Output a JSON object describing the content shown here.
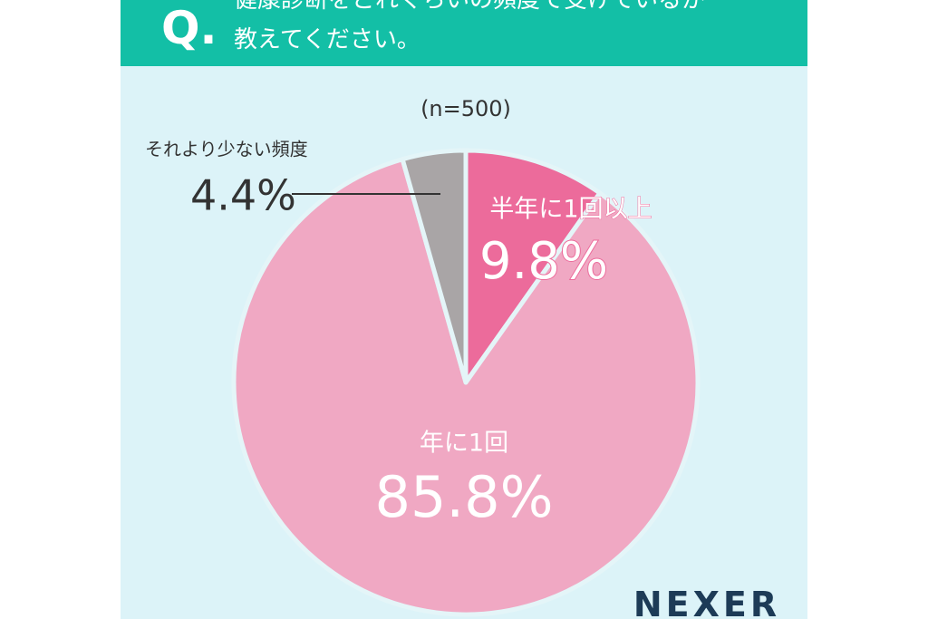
{
  "chart_data": {
    "type": "pie",
    "badge": "Q.",
    "title": [
      "健康診断をどれくらいの頻度で受けているか",
      "教えてください。"
    ],
    "subtitle": "(n=500)",
    "categories": [
      "半年に1回以上",
      "年に1回",
      "それより少ない頻度"
    ],
    "values": [
      9.8,
      85.8,
      4.4
    ],
    "value_labels": [
      "9.8%",
      "85.8%",
      "4.4%"
    ],
    "colors": [
      "#ec6b9b",
      "#f0a8c3",
      "#a9a5a6"
    ],
    "logo": "NEXER"
  }
}
